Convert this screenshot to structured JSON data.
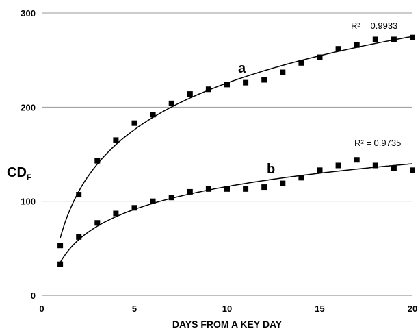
{
  "chart_data": {
    "type": "scatter",
    "xlabel": "DAYS FROM A KEY DAY",
    "ylabel": "CD",
    "ylabel_subscript": "F",
    "xlim": [
      0,
      20
    ],
    "ylim": [
      0,
      300
    ],
    "xticks": [
      "0",
      "5",
      "10",
      "15",
      "20"
    ],
    "yticks": [
      "0",
      "100",
      "200",
      "300"
    ],
    "grid": {
      "horizontal": true,
      "vertical": false
    },
    "series": [
      {
        "name": "a",
        "x": [
          1,
          2,
          3,
          4,
          5,
          6,
          7,
          8,
          9,
          10,
          11,
          12,
          13,
          14,
          15,
          16,
          17,
          18,
          19,
          20
        ],
        "values": [
          53,
          107,
          143,
          165,
          183,
          192,
          204,
          214,
          219,
          224,
          226,
          229,
          237,
          247,
          253,
          262,
          266,
          272,
          272,
          274
        ],
        "trendline": {
          "type": "logarithmic",
          "coef": 71.5,
          "intercept": 61,
          "r2_label": "R² = 0.9933"
        },
        "color": "#000000"
      },
      {
        "name": "b",
        "x": [
          1,
          2,
          3,
          4,
          5,
          6,
          7,
          8,
          9,
          10,
          11,
          12,
          13,
          14,
          15,
          16,
          17,
          18,
          19,
          20
        ],
        "values": [
          33,
          62,
          77,
          87,
          93,
          100,
          104,
          110,
          113,
          113,
          113,
          115,
          119,
          125,
          133,
          138,
          144,
          138,
          135,
          133
        ],
        "trendline": {
          "type": "logarithmic",
          "coef": 35,
          "intercept": 35,
          "r2_label": "R² = 0.9735"
        },
        "color": "#000000"
      }
    ]
  }
}
